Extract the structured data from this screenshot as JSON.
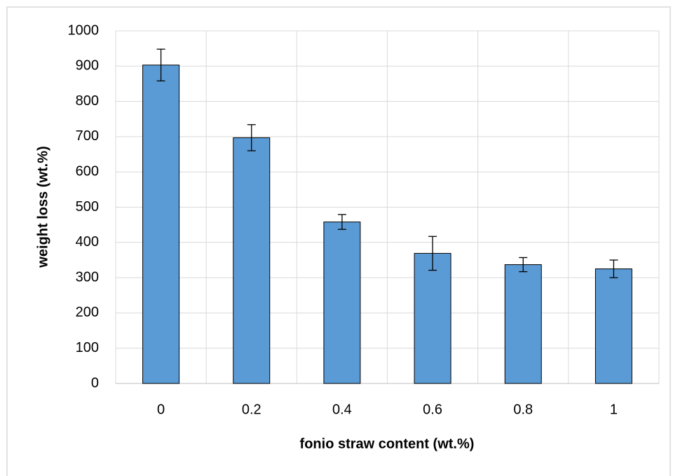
{
  "chart_data": {
    "type": "bar",
    "x_label": "fonio straw content (wt.%)",
    "y_label": "weight loss (wt.%)",
    "categories": [
      "0",
      "0.2",
      "0.4",
      "0.6",
      "0.8",
      "1"
    ],
    "values": [
      903,
      697,
      458,
      369,
      337,
      325
    ],
    "errors": [
      45,
      37,
      21,
      48,
      20,
      25
    ],
    "color": "#5b9bd5",
    "ylim": [
      0,
      1000
    ],
    "yticks": [
      0,
      100,
      200,
      300,
      400,
      500,
      600,
      700,
      800,
      900,
      1000
    ],
    "grid": true
  }
}
